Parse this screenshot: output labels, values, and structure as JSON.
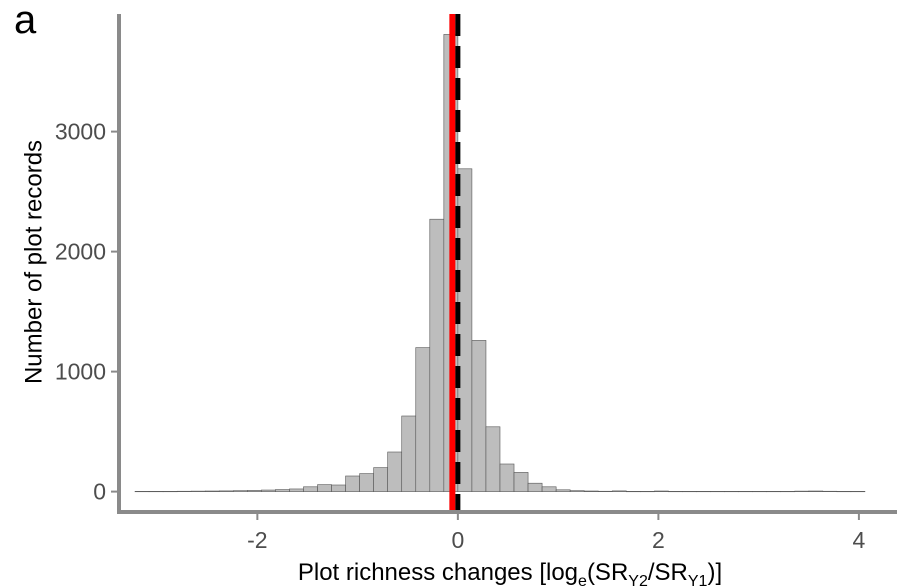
{
  "panel_label": "a",
  "chart_data": {
    "type": "bar",
    "xlabel_prefix": "Plot richness changes [log",
    "xlabel_sub_e": "e",
    "xlabel_mid1": "(SR",
    "xlabel_sub_y2": "Y2",
    "xlabel_mid2": "/SR",
    "xlabel_sub_y1": "Y1",
    "xlabel_suffix": ")]",
    "ylabel": "Number of plot records",
    "xlim": [
      -3.38,
      4.38
    ],
    "ylim": [
      -170,
      3980
    ],
    "xticks": [
      -2,
      0,
      2,
      4
    ],
    "xtick_labels": [
      "-2",
      "0",
      "2",
      "4"
    ],
    "yticks": [
      0,
      1000,
      2000,
      3000
    ],
    "ytick_labels": [
      "0",
      "1000",
      "2000",
      "3000"
    ],
    "binwidth": 0.14,
    "bin_centers": [
      -3.15,
      -3.01,
      -2.87,
      -2.73,
      -2.59,
      -2.45,
      -2.31,
      -2.17,
      -2.03,
      -1.89,
      -1.75,
      -1.61,
      -1.47,
      -1.33,
      -1.19,
      -1.05,
      -0.91,
      -0.77,
      -0.63,
      -0.49,
      -0.35,
      -0.21,
      -0.07,
      0.07,
      0.21,
      0.35,
      0.49,
      0.63,
      0.77,
      0.91,
      1.05,
      1.19,
      1.33,
      1.47,
      1.61,
      1.75,
      1.89,
      2.03,
      2.17,
      2.31,
      2.45,
      2.59,
      2.73,
      2.87,
      3.01,
      3.15,
      3.29,
      3.43,
      3.57,
      3.71,
      3.85,
      3.99
    ],
    "counts": [
      2,
      2,
      2,
      3,
      4,
      5,
      6,
      8,
      10,
      13,
      17,
      22,
      40,
      58,
      55,
      130,
      150,
      200,
      330,
      630,
      1200,
      2270,
      3810,
      2690,
      1260,
      540,
      230,
      160,
      70,
      40,
      15,
      8,
      5,
      3,
      6,
      2,
      2,
      5,
      2,
      2,
      2,
      2,
      2,
      2,
      2,
      2,
      2,
      4,
      5,
      3,
      2,
      2
    ],
    "vlines": [
      {
        "x": -0.055,
        "color": "#ff0000",
        "style": "solid"
      },
      {
        "x": 0.0,
        "color": "#000000",
        "style": "dashed"
      }
    ],
    "bar_fill": "#bdbdbd",
    "grid": false,
    "legend": false
  }
}
